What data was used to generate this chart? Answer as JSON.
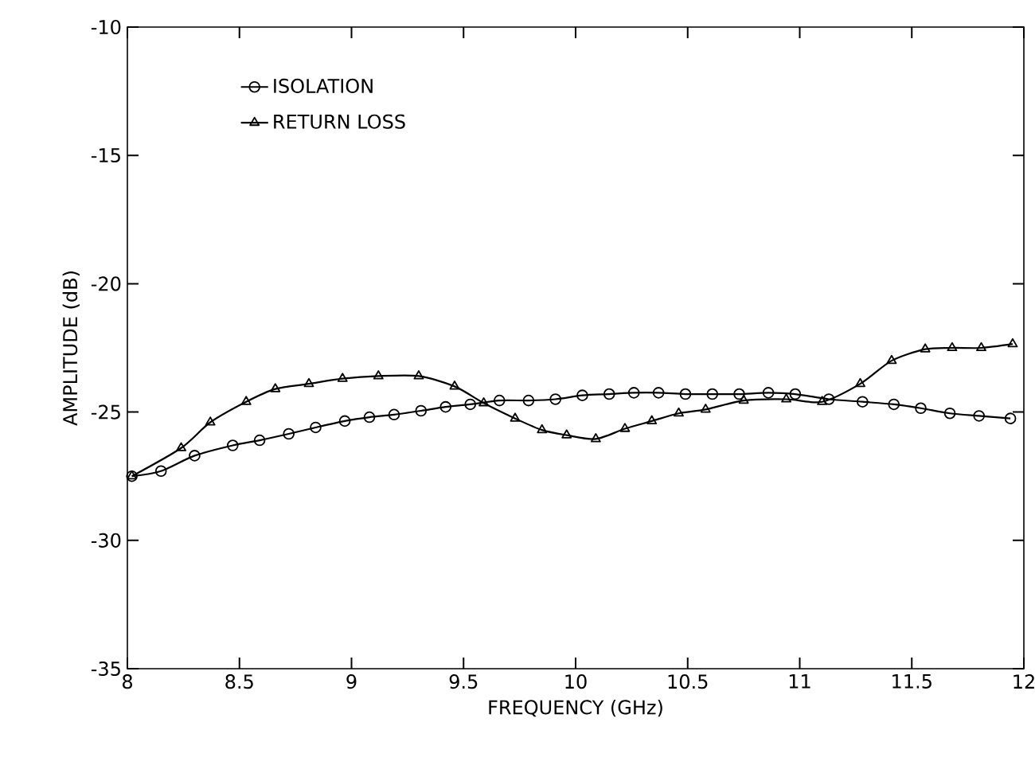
{
  "chart_data": {
    "type": "line",
    "xlabel": "FREQUENCY (GHz)",
    "ylabel": "AMPLITUDE (dB)",
    "xlim": [
      8,
      12
    ],
    "ylim": [
      -35,
      -10
    ],
    "xticks": [
      8,
      8.5,
      9,
      9.5,
      10,
      10.5,
      11,
      11.5,
      12
    ],
    "yticks": [
      -35,
      -30,
      -25,
      -20,
      -15,
      -10
    ],
    "grid": false,
    "legend": "top left",
    "line_style": "solid",
    "series": [
      {
        "name": "ISOLATION",
        "color": "#000000",
        "marker": "circle",
        "x": [
          8.02,
          8.15,
          8.3,
          8.47,
          8.59,
          8.72,
          8.84,
          8.97,
          9.08,
          9.19,
          9.31,
          9.42,
          9.53,
          9.66,
          9.79,
          9.91,
          10.03,
          10.15,
          10.26,
          10.37,
          10.49,
          10.61,
          10.73,
          10.86,
          10.98,
          11.13,
          11.28,
          11.42,
          11.54,
          11.67,
          11.8,
          11.94
        ],
        "values": [
          -27.5,
          -27.3,
          -26.7,
          -26.3,
          -26.1,
          -25.85,
          -25.6,
          -25.35,
          -25.2,
          -25.1,
          -24.95,
          -24.8,
          -24.7,
          -24.55,
          -24.55,
          -24.5,
          -24.35,
          -24.3,
          -24.25,
          -24.25,
          -24.3,
          -24.3,
          -24.3,
          -24.25,
          -24.3,
          -24.5,
          -24.6,
          -24.7,
          -24.85,
          -25.05,
          -25.15,
          -25.25
        ]
      },
      {
        "name": "RETURN LOSS",
        "color": "#000000",
        "marker": "triangle",
        "x": [
          8.02,
          8.24,
          8.37,
          8.53,
          8.66,
          8.81,
          8.96,
          9.12,
          9.3,
          9.46,
          9.59,
          9.73,
          9.85,
          9.96,
          10.09,
          10.22,
          10.34,
          10.46,
          10.58,
          10.75,
          10.94,
          11.1,
          11.27,
          11.41,
          11.56,
          11.68,
          11.81,
          11.95
        ],
        "values": [
          -27.5,
          -26.4,
          -25.4,
          -24.6,
          -24.1,
          -23.9,
          -23.7,
          -23.6,
          -23.6,
          -24.0,
          -24.65,
          -25.25,
          -25.7,
          -25.9,
          -26.05,
          -25.65,
          -25.35,
          -25.05,
          -24.9,
          -24.55,
          -24.5,
          -24.6,
          -23.9,
          -23.0,
          -22.55,
          -22.5,
          -22.5,
          -22.35
        ]
      }
    ]
  }
}
